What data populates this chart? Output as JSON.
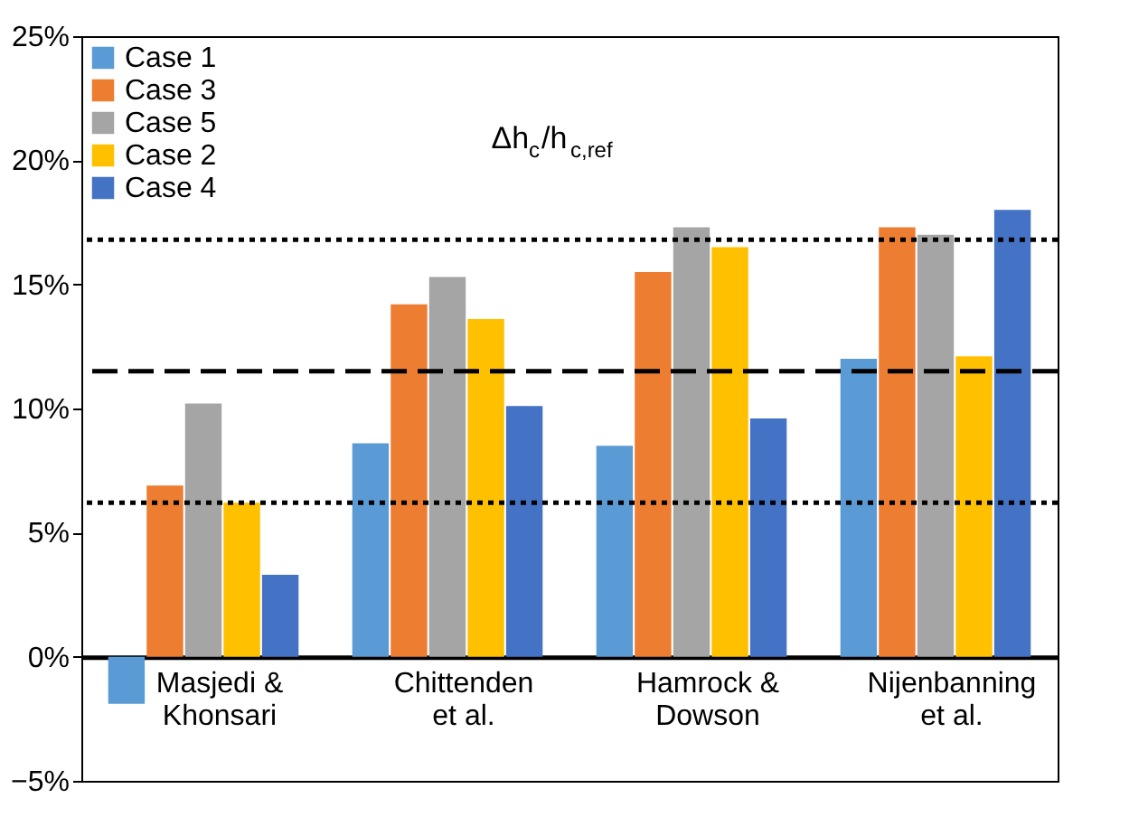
{
  "chart_data": {
    "type": "bar",
    "categories": [
      "Masjedi &\nKhonsari",
      "Chittenden\net al.",
      "Hamrock &\nDowson",
      "Nijenbanning\net al."
    ],
    "series": [
      {
        "name": "Case 1",
        "color": "#5b9bd5",
        "values": [
          -1.9,
          8.6,
          8.5,
          12.0
        ]
      },
      {
        "name": "Case 3",
        "color": "#ed7d31",
        "values": [
          6.9,
          14.2,
          15.5,
          17.3
        ]
      },
      {
        "name": "Case 5",
        "color": "#a5a5a5",
        "values": [
          10.2,
          15.3,
          17.3,
          17.0
        ]
      },
      {
        "name": "Case 2",
        "color": "#ffc000",
        "values": [
          6.2,
          13.6,
          16.5,
          12.1
        ]
      },
      {
        "name": "Case 4",
        "color": "#4472c4",
        "values": [
          3.3,
          10.1,
          9.6,
          18.0
        ]
      }
    ],
    "ylim": [
      -5,
      25
    ],
    "yticks": [
      {
        "value": -5,
        "label": "−5%"
      },
      {
        "value": 0,
        "label": "0%"
      },
      {
        "value": 5,
        "label": "5%"
      },
      {
        "value": 10,
        "label": "10%"
      },
      {
        "value": 15,
        "label": "15%"
      },
      {
        "value": 20,
        "label": "20%"
      },
      {
        "value": 25,
        "label": "25%"
      }
    ],
    "ref_lines": [
      {
        "axis": "y",
        "value": 16.8,
        "color": "#000000",
        "line_style": "dotted"
      },
      {
        "axis": "y",
        "value": 11.5,
        "color": "#000000",
        "line_style": "dashed"
      },
      {
        "axis": "y",
        "value": 6.2,
        "color": "#000000",
        "line_style": "dotted"
      }
    ],
    "annotations": [
      "Δh$_{c}$/h$_{c,ref}$"
    ],
    "legend": "top left",
    "grid": false
  }
}
